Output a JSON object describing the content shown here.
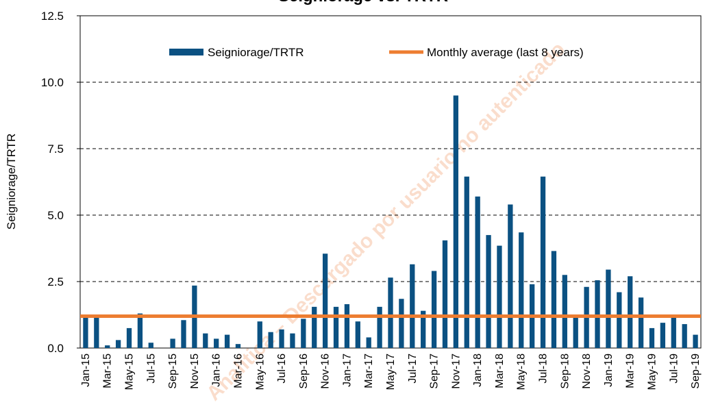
{
  "chart_data": {
    "type": "bar",
    "title": "Seigniorage vs. TRTR",
    "y_label": "Seigniorage/TRTR",
    "watermark": "Analítica – Descargado por usuario no autenticado",
    "categories": [
      "Jan-15",
      null,
      "Mar-15",
      null,
      "May-15",
      null,
      "Jul-15",
      null,
      "Sep-15",
      null,
      "Nov-15",
      null,
      "Jan-16",
      null,
      "Mar-16",
      null,
      "May-16",
      null,
      "Jul-16",
      null,
      "Sep-16",
      null,
      "Nov-16",
      null,
      "Jan-17",
      null,
      "Mar-17",
      null,
      "May-17",
      null,
      "Jul-17",
      null,
      "Sep-17",
      null,
      "Nov-17",
      null,
      "Jan-18",
      null,
      "Mar-18",
      null,
      "May-18",
      null,
      "Jul-18",
      null,
      "Sep-18",
      null,
      "Nov-18",
      null,
      "Jan-19",
      null,
      "Mar-19",
      null,
      "May-19",
      null,
      "Jul-19",
      null,
      "Sep-19"
    ],
    "series": [
      {
        "name": "Seigniorage/TRTR",
        "color": "#0b5182",
        "values": [
          1.15,
          1.25,
          0.1,
          0.3,
          0.75,
          1.3,
          0.2,
          0,
          0.35,
          1.05,
          2.35,
          0.55,
          0.35,
          0.5,
          0.15,
          0,
          1.0,
          0.6,
          0.7,
          0.55,
          1.1,
          1.55,
          3.55,
          1.55,
          1.65,
          1.0,
          0.4,
          1.55,
          2.65,
          1.85,
          3.15,
          1.4,
          2.9,
          4.05,
          9.5,
          6.45,
          5.7,
          4.25,
          3.85,
          5.4,
          4.35,
          2.4,
          6.45,
          3.65,
          2.75,
          1.15,
          2.3,
          2.55,
          2.95,
          2.1,
          2.7,
          1.9,
          0.75,
          0.95,
          1.25,
          0.9,
          0.5
        ]
      }
    ],
    "average": {
      "name": "Monthly average (last 8 years)",
      "color": "#ed7d31",
      "value": 1.2
    },
    "ylim": [
      0,
      12.5
    ],
    "yticks": [
      {
        "value": 0,
        "label": "0.0"
      },
      {
        "value": 2.5,
        "label": "2.5"
      },
      {
        "value": 5,
        "label": "5.0"
      },
      {
        "value": 7.5,
        "label": "7.5"
      },
      {
        "value": 10,
        "label": "10.0"
      },
      {
        "value": 12.5,
        "label": "12.5"
      }
    ],
    "grid": true
  }
}
